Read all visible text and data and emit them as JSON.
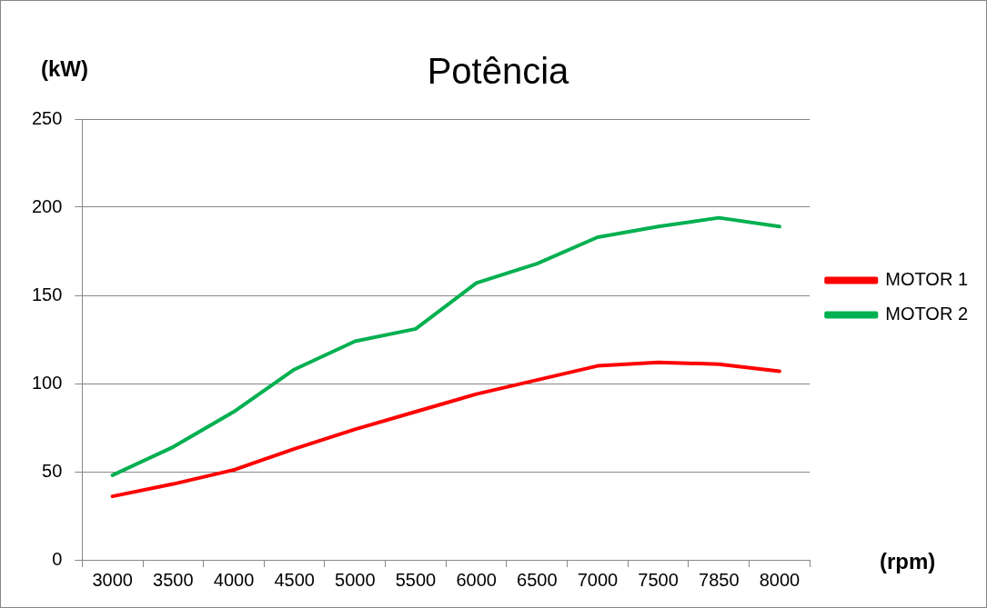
{
  "chart_data": {
    "type": "line",
    "title": "Potência",
    "xlabel": "(rpm)",
    "ylabel": "(kW)",
    "categories": [
      "3000",
      "3500",
      "4000",
      "4500",
      "5000",
      "5500",
      "6000",
      "6500",
      "7000",
      "7500",
      "7850",
      "8000"
    ],
    "series": [
      {
        "name": "MOTOR 1",
        "color": "#ff0000",
        "values": [
          36,
          43,
          51,
          63,
          74,
          84,
          94,
          102,
          110,
          112,
          111,
          107
        ]
      },
      {
        "name": "MOTOR 2",
        "color": "#00b050",
        "values": [
          48,
          64,
          84,
          108,
          124,
          131,
          157,
          168,
          183,
          189,
          194,
          189
        ]
      }
    ],
    "ylim": [
      0,
      250
    ],
    "yticks": [
      0,
      50,
      100,
      150,
      200,
      250
    ],
    "grid": "y",
    "legend": "right",
    "marker": "none",
    "line_style": "solid"
  }
}
